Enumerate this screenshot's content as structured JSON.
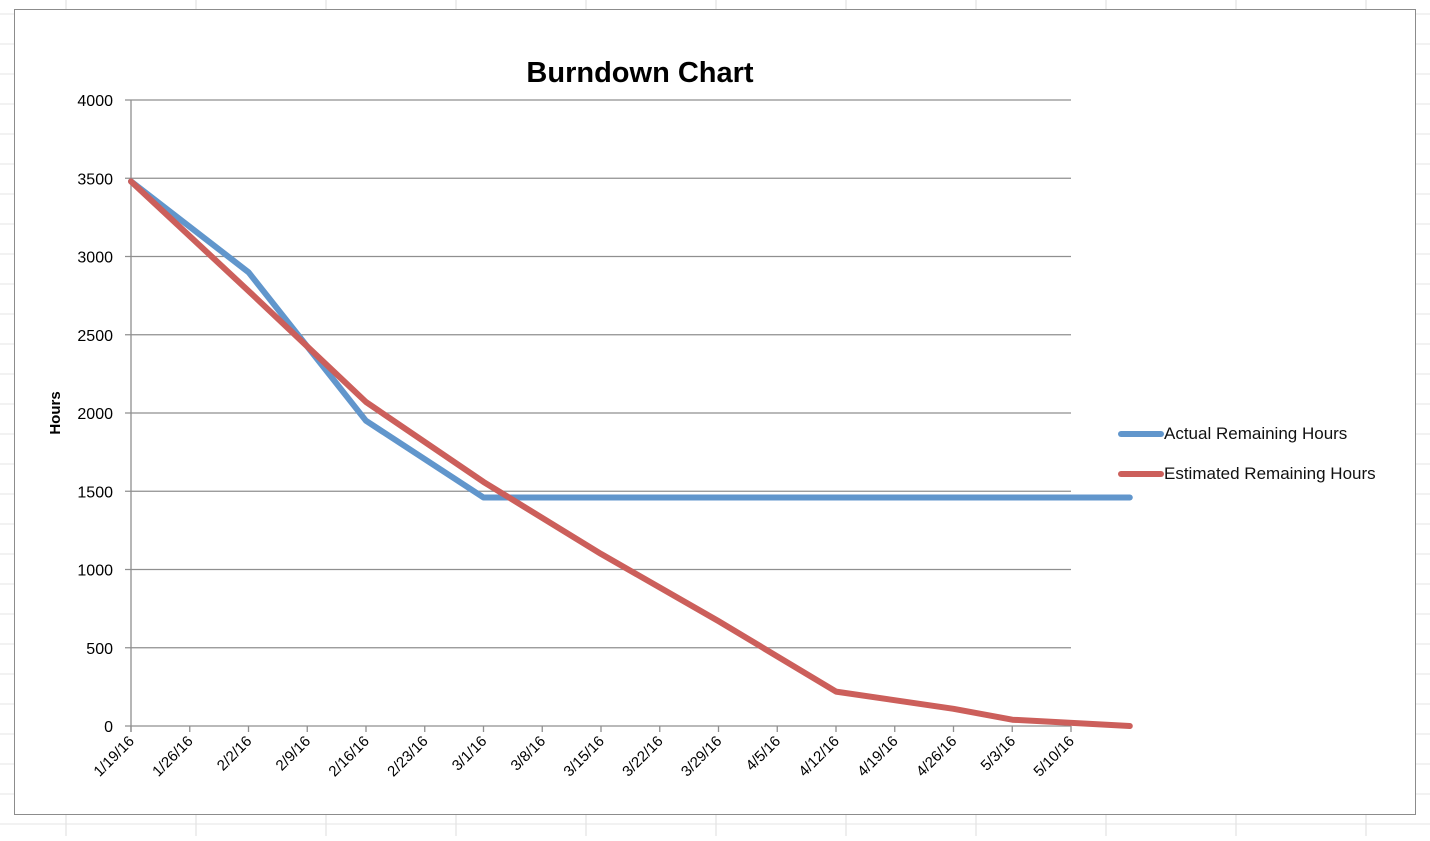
{
  "chart_data": {
    "type": "line",
    "title": "Burndown Chart",
    "xlabel": "",
    "ylabel": "Hours",
    "ylim": [
      0,
      4000
    ],
    "yticks": [
      0,
      500,
      1000,
      1500,
      2000,
      2500,
      3000,
      3500,
      4000
    ],
    "categories": [
      "1/19/16",
      "1/26/16",
      "2/2/16",
      "2/9/16",
      "2/16/16",
      "2/23/16",
      "3/1/16",
      "3/8/16",
      "3/15/16",
      "3/22/16",
      "3/29/16",
      "4/5/16",
      "4/12/16",
      "4/19/16",
      "4/26/16",
      "5/3/16",
      "5/10/16"
    ],
    "series": [
      {
        "name": "Actual Remaining Hours",
        "color": "#6196CC",
        "x": [
          0,
          2,
          4,
          6,
          17
        ],
        "values": [
          3480,
          2900,
          1950,
          1460,
          1460
        ]
      },
      {
        "name": "Estimated Remaining Hours",
        "color": "#CC5F5B",
        "x": [
          0,
          2,
          4,
          6,
          8,
          10,
          12,
          14,
          15,
          17
        ],
        "values": [
          3480,
          2780,
          2070,
          1560,
          1100,
          670,
          220,
          110,
          40,
          0
        ]
      }
    ],
    "grid": true,
    "legend_position": "right"
  }
}
